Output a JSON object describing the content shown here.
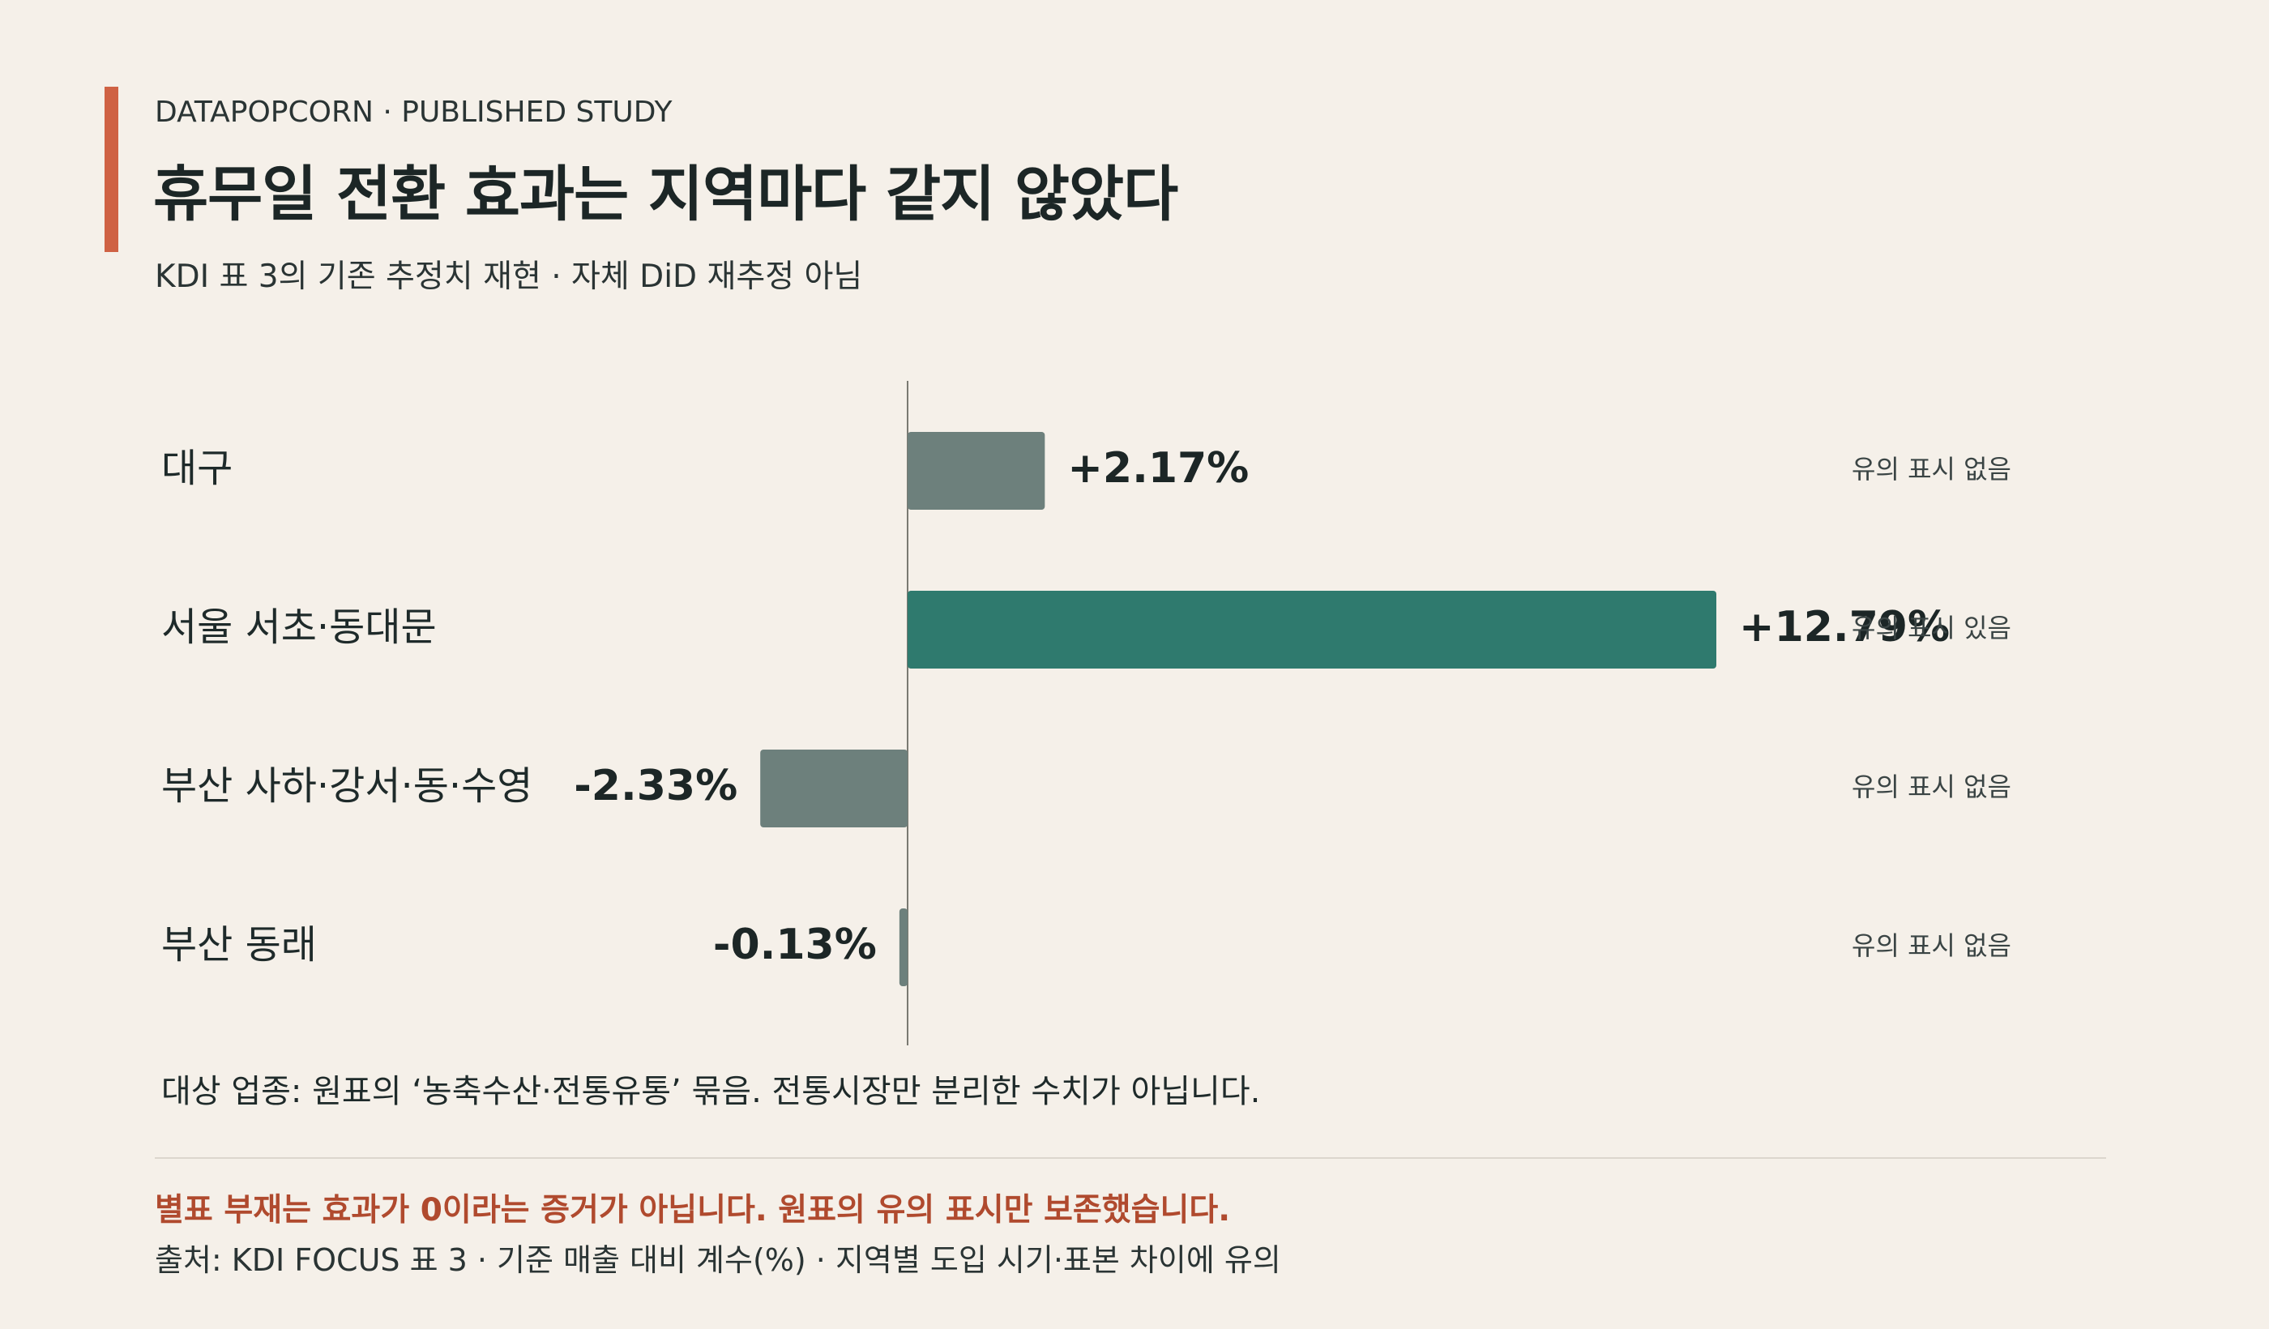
{
  "header": {
    "eyebrow": "DATAPOPCORN · PUBLISHED STUDY",
    "title": "휴무일 전환 효과는 지역마다 같지 않았다",
    "subtitle": "KDI 표 3의 기존 추정치 재현 · 자체 DiD 재추정 아님"
  },
  "chart_data": {
    "type": "bar",
    "orientation": "horizontal",
    "categories": [
      "대구",
      "서울 서초·동대문",
      "부산 사하·강서·동·수영",
      "부산 동래"
    ],
    "values": [
      2.17,
      12.79,
      -2.33,
      -0.13
    ],
    "value_labels": [
      "+2.17%",
      "+12.79%",
      "-2.33%",
      "-0.13%"
    ],
    "significance": [
      "유의 표시 없음",
      "유의 표시 있음",
      "유의 표시 없음",
      "유의 표시 없음"
    ],
    "xlim": [
      -2.33,
      12.79
    ],
    "grid": false,
    "colors": {
      "significant": "#2f7a6e",
      "not_significant": "#6d807c",
      "baseline": "#7a7a72"
    }
  },
  "footer": {
    "note": "대상 업종: 원표의 ‘농축수산·전통유통’ 묶음. 전통시장만 분리한 수치가 아닙니다.",
    "warning": "별표 부재는 효과가 0이라는 증거가 아닙니다. 원표의 유의 표시만 보존했습니다.",
    "source": "출처: KDI FOCUS 표 3 · 기준 매출 대비 계수(%) · 지역별 도입 시기·표본 차이에 유의"
  },
  "colors": {
    "background": "#f5f0e9",
    "accent": "#cf6244",
    "warning_text": "#b04a2e"
  }
}
